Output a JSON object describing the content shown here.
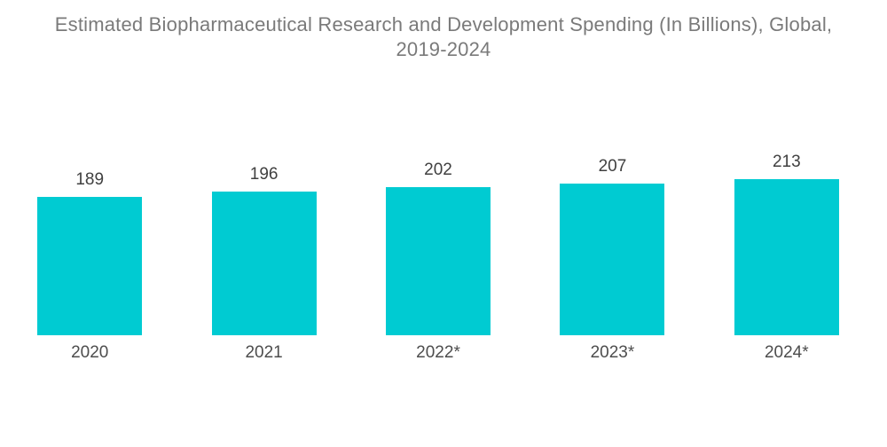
{
  "header": {
    "title_line1": "Estimated Biopharmaceutical Research and Development Spending (In Billions), Global,",
    "title_line2": "2019-2024"
  },
  "chart_data": {
    "type": "bar",
    "title": "Estimated Biopharmaceutical Research and Development Spending (In Billions), Global, 2019-2024",
    "categories": [
      "2020",
      "2021",
      "2022*",
      "2023*",
      "2024*"
    ],
    "values": [
      189,
      196,
      202,
      207,
      213
    ],
    "xlabel": "",
    "ylabel": "",
    "baseline": 0,
    "grid": false,
    "legend": false,
    "axes_visible": false,
    "value_labels_shown": true,
    "bar_color": "#00CBD2",
    "value_label_color": "#404040",
    "axis_label_color": "#4d4d4d",
    "title_color": "#7a7a7a"
  }
}
